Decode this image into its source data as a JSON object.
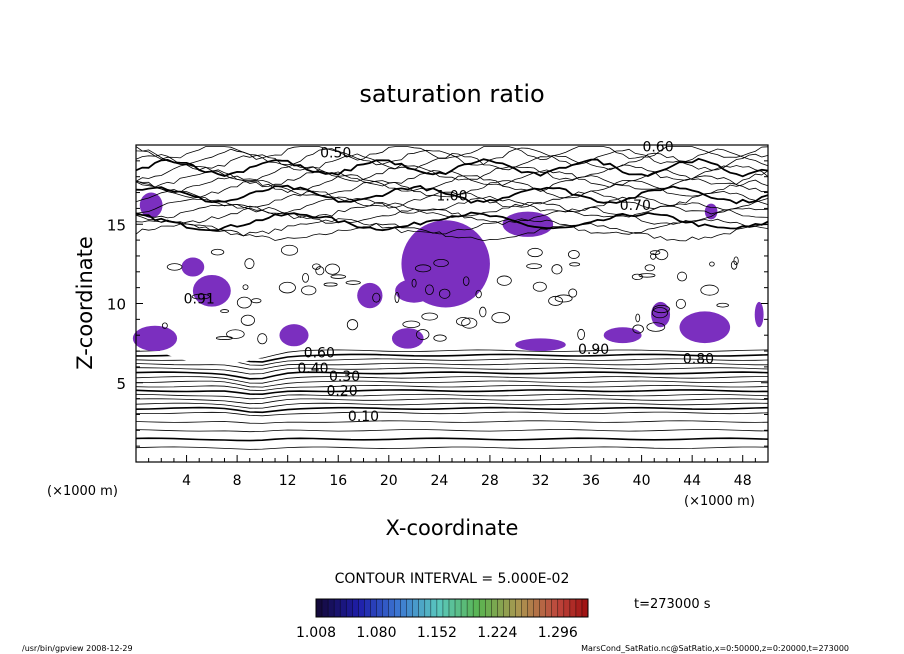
{
  "chart_data": {
    "type": "contour",
    "title": "saturation ratio",
    "xlabel": "X-coordinate",
    "ylabel": "Z-coordinate",
    "x_unit_left": "(×1000 m)",
    "x_unit_right": "(×1000 m)",
    "xlim": [
      0,
      50
    ],
    "ylim": [
      0,
      20
    ],
    "x_ticks": [
      4,
      8,
      12,
      16,
      20,
      24,
      28,
      32,
      36,
      40,
      44,
      48
    ],
    "y_ticks": [
      5,
      10,
      15
    ],
    "contour_interval_text": "CONTOUR INTERVAL = 5.000E-02",
    "time_text": "t=273000 s",
    "contour_labels": [
      {
        "text": "0.10",
        "x": 18,
        "z": 2.6
      },
      {
        "text": "0.20",
        "x": 16.3,
        "z": 4.2
      },
      {
        "text": "0.30",
        "x": 16.5,
        "z": 5.1
      },
      {
        "text": "0.40",
        "x": 14,
        "z": 5.6
      },
      {
        "text": "0.60",
        "x": 14.5,
        "z": 6.6
      },
      {
        "text": "0.91",
        "x": 5,
        "z": 10.0
      },
      {
        "text": "0.50",
        "x": 15.8,
        "z": 19.2
      },
      {
        "text": "0.60",
        "x": 41.3,
        "z": 19.6
      },
      {
        "text": "0.70",
        "x": 39.5,
        "z": 15.9
      },
      {
        "text": "1.00",
        "x": 25,
        "z": 16.5
      },
      {
        "text": "0.90",
        "x": 36.2,
        "z": 6.8
      },
      {
        "text": "0.80",
        "x": 44.5,
        "z": 6.2
      }
    ],
    "colorbar": {
      "min": 1.008,
      "max": 1.332,
      "tick_labels": [
        "1.008",
        "1.080",
        "1.152",
        "1.224",
        "1.296"
      ]
    },
    "grid": false,
    "legend": "bottom colorbar"
  },
  "footer": {
    "left": "/usr/bin/gpview   2008-12-29",
    "right": "MarsCond_SatRatio.nc@SatRatio,x=0:50000,z=0:20000,t=273000"
  }
}
